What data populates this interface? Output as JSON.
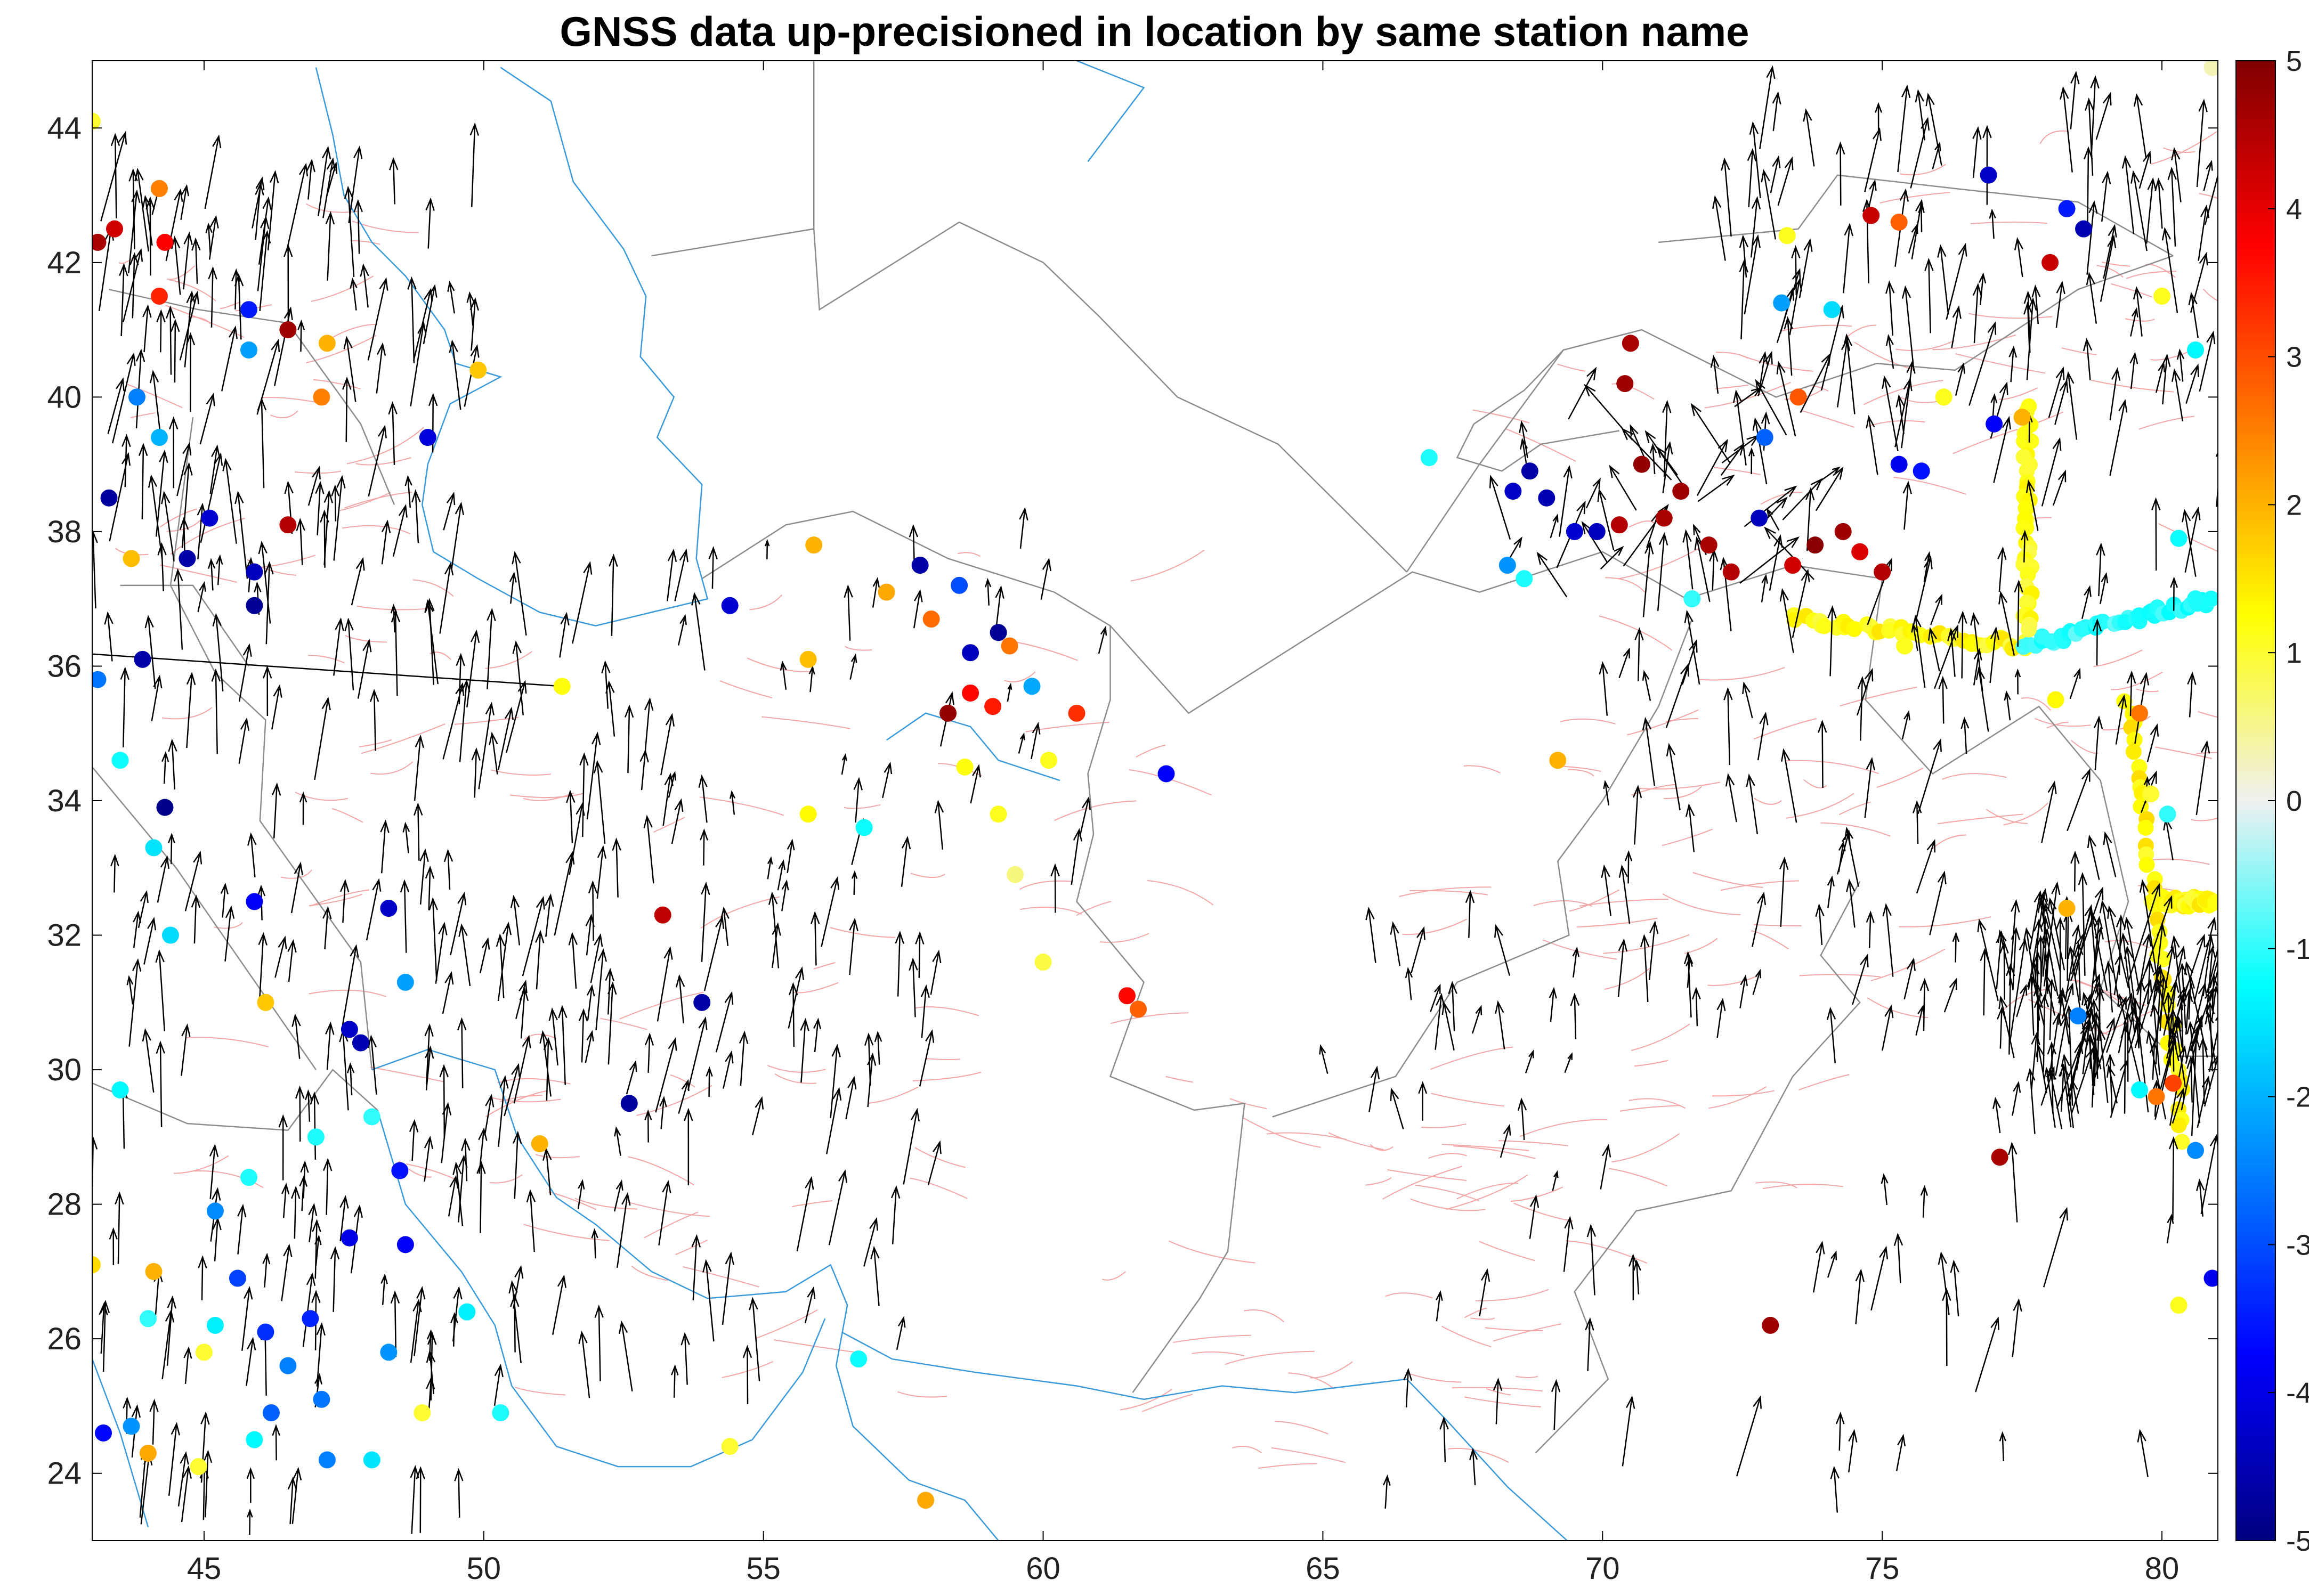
{
  "title": "GNSS data up-precisioned in location by same station name",
  "colors": {
    "coastline": "#3a9ad9",
    "border": "#8c8c8c",
    "fault": "#f4a6a6",
    "arrow": "#000000",
    "frame": "#000000"
  },
  "chart_data": {
    "type": "scatter",
    "xlim": [
      43,
      81
    ],
    "ylim": [
      23,
      45
    ],
    "xticks": [
      45,
      50,
      55,
      60,
      65,
      70,
      75,
      80
    ],
    "yticks": [
      24,
      26,
      28,
      30,
      32,
      34,
      36,
      38,
      40,
      42,
      44
    ],
    "grid": false,
    "colorbar": {
      "range": [
        -5,
        5
      ],
      "ticks": [
        -5,
        -4,
        -3,
        -2,
        -1,
        0,
        1,
        2,
        3,
        4,
        5
      ],
      "colormap": "jet",
      "placement": "right"
    },
    "stations": [
      {
        "lon": 43.1,
        "lat": 42.3,
        "v": 4.6
      },
      {
        "lon": 43.4,
        "lat": 42.5,
        "v": 4.2
      },
      {
        "lon": 44.2,
        "lat": 43.1,
        "v": 2.5
      },
      {
        "lon": 44.3,
        "lat": 42.3,
        "v": 3.8
      },
      {
        "lon": 43.0,
        "lat": 44.1,
        "v": 1.0
      },
      {
        "lon": 44.2,
        "lat": 41.5,
        "v": 3.4
      },
      {
        "lon": 45.8,
        "lat": 40.7,
        "v": -2.2
      },
      {
        "lon": 45.8,
        "lat": 41.3,
        "v": -3.5
      },
      {
        "lon": 46.5,
        "lat": 41.0,
        "v": 4.7
      },
      {
        "lon": 47.2,
        "lat": 40.8,
        "v": 2.0
      },
      {
        "lon": 47.1,
        "lat": 40.0,
        "v": 2.5
      },
      {
        "lon": 49.9,
        "lat": 40.4,
        "v": 1.8
      },
      {
        "lon": 43.8,
        "lat": 40.0,
        "v": -2.5
      },
      {
        "lon": 44.2,
        "lat": 39.4,
        "v": -2.0
      },
      {
        "lon": 45.1,
        "lat": 38.2,
        "v": -4.2
      },
      {
        "lon": 44.7,
        "lat": 37.6,
        "v": -4.6
      },
      {
        "lon": 45.9,
        "lat": 37.4,
        "v": -4.4
      },
      {
        "lon": 45.9,
        "lat": 36.9,
        "v": -4.8
      },
      {
        "lon": 43.3,
        "lat": 38.5,
        "v": -4.7
      },
      {
        "lon": 43.7,
        "lat": 37.6,
        "v": 1.9
      },
      {
        "lon": 46.5,
        "lat": 38.1,
        "v": 4.5
      },
      {
        "lon": 49.0,
        "lat": 39.4,
        "v": -4.1
      },
      {
        "lon": 43.9,
        "lat": 36.1,
        "v": -4.6
      },
      {
        "lon": 43.1,
        "lat": 35.8,
        "v": -2.6
      },
      {
        "lon": 43.5,
        "lat": 34.6,
        "v": -1.2
      },
      {
        "lon": 44.3,
        "lat": 33.9,
        "v": -4.9
      },
      {
        "lon": 44.1,
        "lat": 33.3,
        "v": -1.5
      },
      {
        "lon": 44.4,
        "lat": 32.0,
        "v": -1.6
      },
      {
        "lon": 45.9,
        "lat": 32.5,
        "v": -3.8
      },
      {
        "lon": 46.1,
        "lat": 31.0,
        "v": 1.8
      },
      {
        "lon": 47.6,
        "lat": 30.6,
        "v": -4.3
      },
      {
        "lon": 47.8,
        "lat": 30.4,
        "v": -4.5
      },
      {
        "lon": 43.5,
        "lat": 29.7,
        "v": -1.3
      },
      {
        "lon": 47.0,
        "lat": 29.0,
        "v": -1.1
      },
      {
        "lon": 48.5,
        "lat": 28.5,
        "v": -3.6
      },
      {
        "lon": 47.6,
        "lat": 27.5,
        "v": -4.0
      },
      {
        "lon": 48.6,
        "lat": 27.4,
        "v": -3.8
      },
      {
        "lon": 45.2,
        "lat": 27.9,
        "v": -2.4
      },
      {
        "lon": 45.8,
        "lat": 28.4,
        "v": -1.1
      },
      {
        "lon": 43.0,
        "lat": 27.1,
        "v": 1.6
      },
      {
        "lon": 44.1,
        "lat": 27.0,
        "v": 2.0
      },
      {
        "lon": 45.6,
        "lat": 26.9,
        "v": -3.1
      },
      {
        "lon": 44.0,
        "lat": 26.3,
        "v": -1.0
      },
      {
        "lon": 45.2,
        "lat": 26.2,
        "v": -1.4
      },
      {
        "lon": 46.1,
        "lat": 26.1,
        "v": -3.3
      },
      {
        "lon": 46.9,
        "lat": 26.3,
        "v": -3.4
      },
      {
        "lon": 46.5,
        "lat": 25.6,
        "v": -2.5
      },
      {
        "lon": 46.2,
        "lat": 24.9,
        "v": -2.8
      },
      {
        "lon": 47.1,
        "lat": 25.1,
        "v": -2.6
      },
      {
        "lon": 47.2,
        "lat": 24.2,
        "v": -2.5
      },
      {
        "lon": 48.0,
        "lat": 24.2,
        "v": -1.5
      },
      {
        "lon": 44.0,
        "lat": 24.3,
        "v": 2.1
      },
      {
        "lon": 43.2,
        "lat": 24.6,
        "v": -3.7
      },
      {
        "lon": 43.7,
        "lat": 24.7,
        "v": -2.3
      },
      {
        "lon": 44.9,
        "lat": 24.1,
        "v": 1.0
      },
      {
        "lon": 45.9,
        "lat": 24.5,
        "v": -1.3
      },
      {
        "lon": 45.0,
        "lat": 25.8,
        "v": 1.0
      },
      {
        "lon": 48.3,
        "lat": 25.8,
        "v": -2.3
      },
      {
        "lon": 48.9,
        "lat": 24.9,
        "v": 1.0
      },
      {
        "lon": 49.7,
        "lat": 26.4,
        "v": -1.4
      },
      {
        "lon": 50.3,
        "lat": 24.9,
        "v": -1.1
      },
      {
        "lon": 48.3,
        "lat": 32.4,
        "v": -4.3
      },
      {
        "lon": 48.6,
        "lat": 31.3,
        "v": -2.2
      },
      {
        "lon": 48.0,
        "lat": 29.3,
        "v": -1.0
      },
      {
        "lon": 51.0,
        "lat": 28.9,
        "v": 2.0
      },
      {
        "lon": 52.6,
        "lat": 29.5,
        "v": -4.7
      },
      {
        "lon": 53.9,
        "lat": 31.0,
        "v": -4.6
      },
      {
        "lon": 53.2,
        "lat": 32.3,
        "v": 4.4
      },
      {
        "lon": 51.4,
        "lat": 35.7,
        "v": 1.2
      },
      {
        "lon": 54.4,
        "lat": 36.9,
        "v": -4.2
      },
      {
        "lon": 55.9,
        "lat": 37.8,
        "v": 2.0
      },
      {
        "lon": 55.8,
        "lat": 36.1,
        "v": 1.9
      },
      {
        "lon": 57.2,
        "lat": 37.1,
        "v": 2.1
      },
      {
        "lon": 57.8,
        "lat": 37.5,
        "v": -4.6
      },
      {
        "lon": 58.5,
        "lat": 37.2,
        "v": -3.0
      },
      {
        "lon": 58.0,
        "lat": 36.7,
        "v": 2.7
      },
      {
        "lon": 58.7,
        "lat": 36.2,
        "v": -4.4
      },
      {
        "lon": 59.2,
        "lat": 36.5,
        "v": -4.8
      },
      {
        "lon": 59.4,
        "lat": 36.3,
        "v": 2.6
      },
      {
        "lon": 59.8,
        "lat": 35.7,
        "v": -2.1
      },
      {
        "lon": 58.7,
        "lat": 35.6,
        "v": 3.7
      },
      {
        "lon": 58.3,
        "lat": 35.3,
        "v": 4.8
      },
      {
        "lon": 59.1,
        "lat": 35.4,
        "v": 3.5
      },
      {
        "lon": 60.6,
        "lat": 35.3,
        "v": 3.3
      },
      {
        "lon": 58.6,
        "lat": 34.5,
        "v": 1.2
      },
      {
        "lon": 60.1,
        "lat": 34.6,
        "v": 1.1
      },
      {
        "lon": 56.8,
        "lat": 33.6,
        "v": -1.2
      },
      {
        "lon": 55.8,
        "lat": 33.8,
        "v": 1.3
      },
      {
        "lon": 59.2,
        "lat": 33.8,
        "v": 1.1
      },
      {
        "lon": 59.5,
        "lat": 32.9,
        "v": 0.6
      },
      {
        "lon": 60.0,
        "lat": 31.6,
        "v": 0.9
      },
      {
        "lon": 61.5,
        "lat": 31.1,
        "v": 3.7
      },
      {
        "lon": 61.7,
        "lat": 30.9,
        "v": 2.8
      },
      {
        "lon": 62.2,
        "lat": 34.4,
        "v": -3.8
      },
      {
        "lon": 56.7,
        "lat": 25.7,
        "v": -1.2
      },
      {
        "lon": 57.9,
        "lat": 23.6,
        "v": 2.1
      },
      {
        "lon": 54.4,
        "lat": 24.4,
        "v": 1.0
      },
      {
        "lon": 66.9,
        "lat": 39.1,
        "v": -1.1
      },
      {
        "lon": 68.4,
        "lat": 38.6,
        "v": -4.3
      },
      {
        "lon": 68.7,
        "lat": 38.9,
        "v": -4.6
      },
      {
        "lon": 69.0,
        "lat": 38.5,
        "v": -4.5
      },
      {
        "lon": 69.5,
        "lat": 38.0,
        "v": -4.2
      },
      {
        "lon": 69.9,
        "lat": 38.0,
        "v": -4.4
      },
      {
        "lon": 70.3,
        "lat": 38.1,
        "v": 4.5
      },
      {
        "lon": 70.7,
        "lat": 39.0,
        "v": 4.8
      },
      {
        "lon": 71.1,
        "lat": 38.2,
        "v": 4.6
      },
      {
        "lon": 71.4,
        "lat": 38.6,
        "v": 4.7
      },
      {
        "lon": 71.9,
        "lat": 37.8,
        "v": 4.6
      },
      {
        "lon": 72.3,
        "lat": 37.4,
        "v": 4.5
      },
      {
        "lon": 72.8,
        "lat": 38.2,
        "v": -4.4
      },
      {
        "lon": 73.4,
        "lat": 37.5,
        "v": 4.2
      },
      {
        "lon": 73.8,
        "lat": 37.8,
        "v": 4.9
      },
      {
        "lon": 74.3,
        "lat": 38.0,
        "v": 4.7
      },
      {
        "lon": 74.6,
        "lat": 37.7,
        "v": 4.1
      },
      {
        "lon": 75.0,
        "lat": 37.4,
        "v": 4.5
      },
      {
        "lon": 73.5,
        "lat": 40.0,
        "v": 2.9
      },
      {
        "lon": 72.9,
        "lat": 39.4,
        "v": -2.8
      },
      {
        "lon": 70.5,
        "lat": 40.8,
        "v": 4.6
      },
      {
        "lon": 70.4,
        "lat": 40.2,
        "v": 4.7
      },
      {
        "lon": 68.3,
        "lat": 37.5,
        "v": -2.3
      },
      {
        "lon": 68.6,
        "lat": 37.3,
        "v": -1.1
      },
      {
        "lon": 71.6,
        "lat": 37.0,
        "v": -1.0
      },
      {
        "lon": 69.2,
        "lat": 34.6,
        "v": 2.0
      },
      {
        "lon": 75.3,
        "lat": 39.0,
        "v": -3.9
      },
      {
        "lon": 75.7,
        "lat": 38.9,
        "v": -3.6
      },
      {
        "lon": 75.4,
        "lat": 36.3,
        "v": 1.1
      },
      {
        "lon": 77.0,
        "lat": 39.6,
        "v": -3.8
      },
      {
        "lon": 77.5,
        "lat": 39.7,
        "v": 2.0
      },
      {
        "lon": 76.1,
        "lat": 40.0,
        "v": 1.1
      },
      {
        "lon": 78.0,
        "lat": 42.0,
        "v": 4.3
      },
      {
        "lon": 78.3,
        "lat": 42.8,
        "v": -3.5
      },
      {
        "lon": 78.6,
        "lat": 42.5,
        "v": -4.5
      },
      {
        "lon": 76.9,
        "lat": 43.3,
        "v": -4.3
      },
      {
        "lon": 74.8,
        "lat": 42.7,
        "v": 4.3
      },
      {
        "lon": 75.3,
        "lat": 42.6,
        "v": 2.8
      },
      {
        "lon": 73.3,
        "lat": 42.4,
        "v": 1.1
      },
      {
        "lon": 73.2,
        "lat": 41.4,
        "v": -2.2
      },
      {
        "lon": 74.1,
        "lat": 41.3,
        "v": -1.6
      },
      {
        "lon": 80.6,
        "lat": 40.7,
        "v": -1.3
      },
      {
        "lon": 80.0,
        "lat": 41.5,
        "v": 1.1
      },
      {
        "lon": 77.1,
        "lat": 28.7,
        "v": 4.6
      },
      {
        "lon": 73.0,
        "lat": 26.2,
        "v": 4.7
      },
      {
        "lon": 80.6,
        "lat": 28.8,
        "v": -2.4
      },
      {
        "lon": 80.9,
        "lat": 26.9,
        "v": -3.9
      },
      {
        "lon": 80.3,
        "lat": 26.5,
        "v": 1.1
      },
      {
        "lon": 79.6,
        "lat": 29.7,
        "v": -1.3
      },
      {
        "lon": 79.9,
        "lat": 29.6,
        "v": 2.6
      },
      {
        "lon": 80.2,
        "lat": 29.8,
        "v": 3.1
      },
      {
        "lon": 78.3,
        "lat": 32.4,
        "v": 2.0
      },
      {
        "lon": 78.5,
        "lat": 30.8,
        "v": -2.5
      },
      {
        "lon": 78.1,
        "lat": 35.5,
        "v": 1.3
      },
      {
        "lon": 79.6,
        "lat": 35.3,
        "v": 2.6
      },
      {
        "lon": 79.8,
        "lat": 34.1,
        "v": 1.0
      },
      {
        "lon": 80.1,
        "lat": 33.8,
        "v": -1.0
      },
      {
        "lon": 80.6,
        "lat": 37.0,
        "v": -1.1
      },
      {
        "lon": 80.3,
        "lat": 37.9,
        "v": -1.2
      },
      {
        "lon": 80.9,
        "lat": 44.9,
        "v": 0.3
      }
    ],
    "belts": [
      {
        "from": [
          73.4,
          36.7
        ],
        "to": [
          77.6,
          36.3
        ],
        "v": 1.2
      },
      {
        "from": [
          77.6,
          36.3
        ],
        "to": [
          80.9,
          37.0
        ],
        "v": -1.0
      },
      {
        "from": [
          77.6,
          39.8
        ],
        "to": [
          77.6,
          36.5
        ],
        "v": 1.1
      },
      {
        "from": [
          79.4,
          35.5
        ],
        "to": [
          80.4,
          29.0
        ],
        "v": 1.3
      },
      {
        "from": [
          80.0,
          32.5
        ],
        "to": [
          80.9,
          32.5
        ],
        "v": 1.2
      }
    ]
  }
}
